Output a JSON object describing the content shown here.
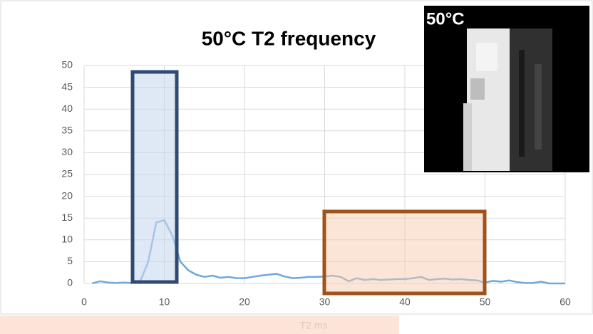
{
  "chart_data": {
    "type": "line",
    "title": "50°C T2 frequency",
    "x_label": "T2 ms",
    "x": [
      1,
      2,
      3,
      4,
      5,
      6,
      7,
      8,
      9,
      10,
      11,
      12,
      13,
      14,
      15,
      16,
      17,
      18,
      19,
      20,
      21,
      22,
      23,
      24,
      25,
      26,
      27,
      28,
      29,
      30,
      31,
      32,
      33,
      34,
      35,
      36,
      37,
      38,
      39,
      40,
      41,
      42,
      43,
      44,
      45,
      46,
      47,
      48,
      49,
      50,
      51,
      52,
      53,
      54,
      55,
      56,
      57,
      58,
      59,
      60
    ],
    "series": [
      {
        "color": "#6fa8dc",
        "values": [
          0,
          0.5,
          0.2,
          0.1,
          0.2,
          0.1,
          0.5,
          5,
          14,
          14.5,
          11,
          5,
          3,
          2,
          1.5,
          1.8,
          1.3,
          1.5,
          1.2,
          1.2,
          1.5,
          1.8,
          2,
          2.2,
          1.6,
          1.2,
          1.3,
          1.5,
          1.5,
          1.6,
          1.8,
          1.5,
          0.5,
          1.2,
          0.8,
          1,
          0.8,
          0.9,
          1,
          1,
          1.2,
          1.5,
          0.8,
          1,
          1.1,
          0.9,
          1,
          0.8,
          0.7,
          0.2,
          0.6,
          0.4,
          0.7,
          0.3,
          0.1,
          0.1,
          0.4,
          0,
          0,
          0
        ]
      }
    ],
    "xlim": [
      0,
      60
    ],
    "xticks": [
      0,
      10,
      20,
      30,
      40,
      50,
      60
    ],
    "ylim": [
      0,
      50
    ],
    "yticks": [
      0,
      5,
      10,
      15,
      20,
      25,
      30,
      35,
      40,
      45,
      50
    ],
    "grid": true,
    "inset_label": "50°C"
  }
}
